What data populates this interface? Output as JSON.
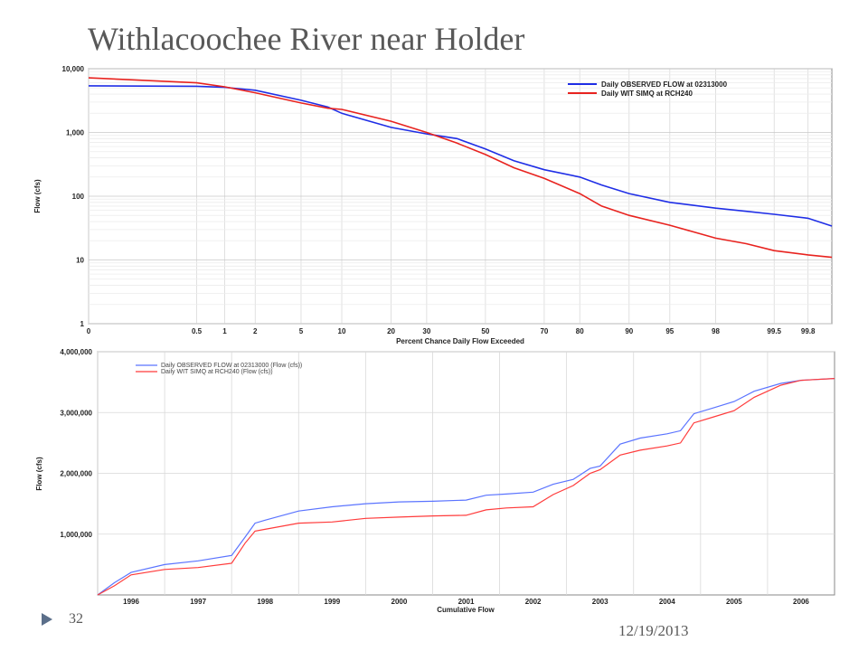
{
  "slide": {
    "title": "Withlacoochee River near Holder",
    "number": "32",
    "date": "12/19/2013",
    "footer_icon": "triangle-bullet-icon"
  },
  "colors": {
    "observed": "#1f2ee6",
    "simulated": "#e8231f",
    "observed_light": "#5b74ff",
    "simulated_light": "#ff3b3b",
    "grid": "#d9d9d9"
  },
  "chart_data": [
    {
      "type": "line",
      "y_scale": "log",
      "x_scale": "probability",
      "xlabel": "Percent Chance Daily Flow Exceeded",
      "ylabel": "Flow (cfs)",
      "ylim": [
        1,
        10000
      ],
      "xlim": [
        0,
        99.9
      ],
      "x_ticks": [
        "0",
        "0.5",
        "1",
        "2",
        "5",
        "10",
        "20",
        "30",
        "50",
        "70",
        "80",
        "90",
        "95",
        "98",
        "99.5",
        "99.8"
      ],
      "y_ticks": [
        "1",
        "10",
        "100",
        "1,000",
        "10,000"
      ],
      "grid": true,
      "legend_position": "top-right",
      "series": [
        {
          "name": "Daily OBSERVED FLOW at 02313000",
          "color_key": "observed",
          "x": [
            0,
            0.5,
            1,
            2,
            5,
            8,
            10,
            20,
            30,
            40,
            50,
            60,
            70,
            80,
            85,
            90,
            95,
            98,
            99,
            99.5,
            99.8,
            99.9
          ],
          "y": [
            5400,
            5300,
            5100,
            4600,
            3200,
            2500,
            2000,
            1200,
            950,
            800,
            550,
            360,
            260,
            200,
            150,
            110,
            80,
            65,
            58,
            52,
            45,
            34
          ]
        },
        {
          "name": "Daily WIT SIMQ at RCH240",
          "color_key": "simulated",
          "x": [
            0,
            0.5,
            1,
            2,
            5,
            8,
            10,
            20,
            30,
            40,
            50,
            60,
            70,
            80,
            85,
            90,
            95,
            98,
            99,
            99.5,
            99.8,
            99.9
          ],
          "y": [
            7200,
            6000,
            5200,
            4200,
            2900,
            2400,
            2300,
            1500,
            1000,
            680,
            450,
            280,
            190,
            110,
            70,
            50,
            35,
            22,
            18,
            14,
            12,
            11
          ]
        }
      ]
    },
    {
      "type": "line",
      "xlabel": "Cumulative Flow",
      "ylabel": "Flow (cfs)",
      "ylim": [
        0,
        4000000
      ],
      "xlim": [
        1995.5,
        2006.5
      ],
      "x_ticks": [
        "1996",
        "1997",
        "1998",
        "1999",
        "2000",
        "2001",
        "2002",
        "2003",
        "2004",
        "2005",
        "2006"
      ],
      "y_ticks": [
        "1,000,000",
        "2,000,000",
        "3,000,000",
        "4,000,000"
      ],
      "grid": true,
      "legend_position": "top-left",
      "series": [
        {
          "name": "Daily OBSERVED FLOW at 02313000 (Flow (cfs))",
          "color_key": "observed_light",
          "x": [
            1995.5,
            1995.75,
            1996,
            1996.5,
            1997,
            1997.5,
            1997.7,
            1997.85,
            1998,
            1998.5,
            1999,
            1999.5,
            2000,
            2000.5,
            2001,
            2001.3,
            2001.6,
            2002,
            2002.3,
            2002.6,
            2002.85,
            2003,
            2003.3,
            2003.6,
            2004,
            2004.2,
            2004.4,
            2004.7,
            2005,
            2005.3,
            2005.7,
            2006,
            2006.5
          ],
          "y": [
            0,
            200000,
            370000,
            500000,
            560000,
            650000,
            950000,
            1180000,
            1230000,
            1380000,
            1450000,
            1500000,
            1530000,
            1540000,
            1560000,
            1640000,
            1660000,
            1690000,
            1820000,
            1900000,
            2080000,
            2120000,
            2480000,
            2580000,
            2650000,
            2700000,
            2980000,
            3080000,
            3180000,
            3350000,
            3480000,
            3530000,
            3560000
          ]
        },
        {
          "name": "Daily WIT SIMQ at RCH240 (Flow (cfs))",
          "color_key": "simulated_light",
          "x": [
            1995.5,
            1995.75,
            1996,
            1996.5,
            1997,
            1997.5,
            1997.7,
            1997.85,
            1998,
            1998.5,
            1999,
            1999.5,
            2000,
            2000.5,
            2001,
            2001.3,
            2001.6,
            2002,
            2002.3,
            2002.6,
            2002.85,
            2003,
            2003.3,
            2003.6,
            2004,
            2004.2,
            2004.4,
            2004.7,
            2005,
            2005.3,
            2005.7,
            2006,
            2006.5
          ],
          "y": [
            0,
            150000,
            330000,
            420000,
            450000,
            520000,
            850000,
            1050000,
            1080000,
            1180000,
            1200000,
            1260000,
            1280000,
            1300000,
            1310000,
            1400000,
            1430000,
            1450000,
            1650000,
            1800000,
            2000000,
            2060000,
            2300000,
            2380000,
            2450000,
            2500000,
            2830000,
            2930000,
            3030000,
            3250000,
            3450000,
            3530000,
            3560000
          ]
        }
      ]
    }
  ]
}
